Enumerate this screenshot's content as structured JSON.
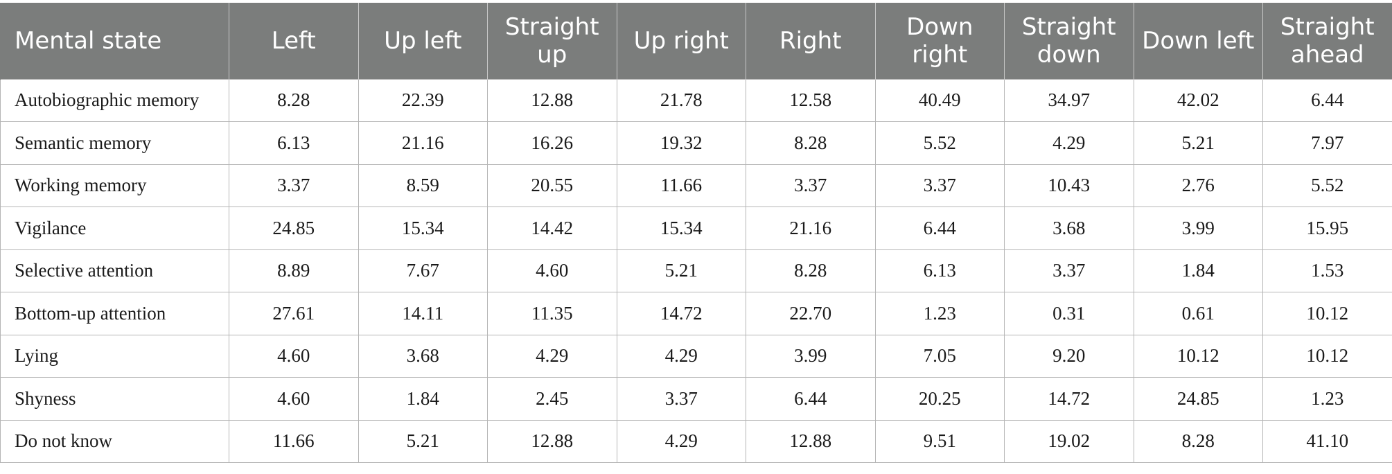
{
  "table": {
    "headers": [
      "Mental state",
      "Left",
      "Up left",
      "Straight up",
      "Up right",
      "Right",
      "Down right",
      "Straight down",
      "Down left",
      "Straight ahead"
    ],
    "rows": [
      [
        "Autobiographic memory",
        "8.28",
        "22.39",
        "12.88",
        "21.78",
        "12.58",
        "40.49",
        "34.97",
        "42.02",
        "6.44"
      ],
      [
        "Semantic memory",
        "6.13",
        "21.16",
        "16.26",
        "19.32",
        "8.28",
        "5.52",
        "4.29",
        "5.21",
        "7.97"
      ],
      [
        "Working memory",
        "3.37",
        "8.59",
        "20.55",
        "11.66",
        "3.37",
        "3.37",
        "10.43",
        "2.76",
        "5.52"
      ],
      [
        "Vigilance",
        "24.85",
        "15.34",
        "14.42",
        "15.34",
        "21.16",
        "6.44",
        "3.68",
        "3.99",
        "15.95"
      ],
      [
        "Selective attention",
        "8.89",
        "7.67",
        "4.60",
        "5.21",
        "8.28",
        "6.13",
        "3.37",
        "1.84",
        "1.53"
      ],
      [
        "Bottom-up attention",
        "27.61",
        "14.11",
        "11.35",
        "14.72",
        "22.70",
        "1.23",
        "0.31",
        "0.61",
        "10.12"
      ],
      [
        "Lying",
        "4.60",
        "3.68",
        "4.29",
        "4.29",
        "3.99",
        "7.05",
        "9.20",
        "10.12",
        "10.12"
      ],
      [
        "Shyness",
        "4.60",
        "1.84",
        "2.45",
        "3.37",
        "6.44",
        "20.25",
        "14.72",
        "24.85",
        "1.23"
      ],
      [
        "Do not know",
        "11.66",
        "5.21",
        "12.88",
        "4.29",
        "12.88",
        "9.51",
        "19.02",
        "8.28",
        "41.10"
      ]
    ]
  },
  "colors": {
    "header_bg": "#7b7d7c",
    "header_text": "#ffffff",
    "grid": "#b5b5b5"
  }
}
